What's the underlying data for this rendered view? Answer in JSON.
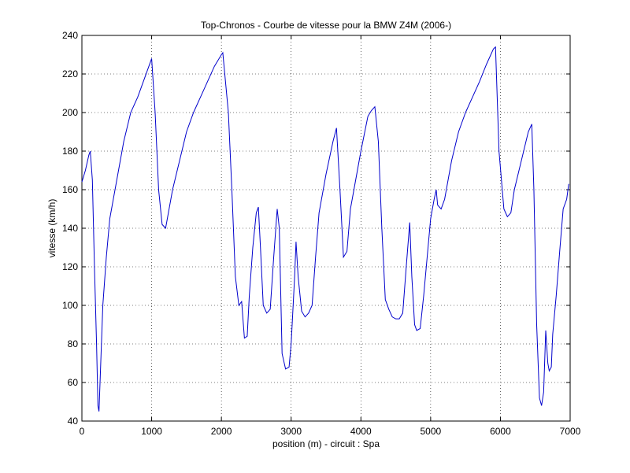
{
  "chart_data": {
    "type": "line",
    "title": "Top-Chronos - Courbe de vitesse pour la BMW Z4M (2006-)",
    "x_label": "position (m) - circuit : Spa",
    "y_label": "vitesse (km/h)",
    "xlim": [
      0,
      7000
    ],
    "ylim": [
      40,
      240
    ],
    "xticks": [
      0,
      1000,
      2000,
      3000,
      4000,
      5000,
      6000,
      7000
    ],
    "yticks": [
      40,
      60,
      80,
      100,
      120,
      140,
      160,
      180,
      200,
      220,
      240
    ],
    "grid": true,
    "x": [
      0,
      50,
      100,
      120,
      150,
      180,
      210,
      230,
      245,
      260,
      300,
      350,
      400,
      500,
      600,
      700,
      800,
      900,
      1000,
      1050,
      1100,
      1150,
      1200,
      1250,
      1300,
      1400,
      1500,
      1600,
      1700,
      1800,
      1900,
      2000,
      2020,
      2100,
      2150,
      2200,
      2250,
      2290,
      2330,
      2370,
      2400,
      2450,
      2500,
      2530,
      2560,
      2600,
      2650,
      2700,
      2750,
      2800,
      2830,
      2870,
      2920,
      2970,
      3000,
      3050,
      3070,
      3100,
      3150,
      3200,
      3250,
      3300,
      3350,
      3400,
      3500,
      3600,
      3650,
      3700,
      3750,
      3800,
      3850,
      3900,
      4000,
      4100,
      4150,
      4200,
      4250,
      4300,
      4350,
      4400,
      4450,
      4500,
      4550,
      4600,
      4650,
      4700,
      4730,
      4770,
      4800,
      4850,
      4900,
      4950,
      5000,
      5050,
      5080,
      5100,
      5150,
      5200,
      5300,
      5400,
      5500,
      5600,
      5700,
      5800,
      5900,
      5930,
      5980,
      6050,
      6100,
      6150,
      6200,
      6300,
      6400,
      6450,
      6480,
      6520,
      6560,
      6590,
      6620,
      6650,
      6680,
      6700,
      6730,
      6750,
      6800,
      6850,
      6900,
      6950,
      6980
    ],
    "series": [
      {
        "name": "vitesse",
        "color": "#0000cc",
        "values": [
          164,
          170,
          178,
          180,
          165,
          120,
          80,
          48,
          45,
          60,
          100,
          125,
          145,
          165,
          185,
          200,
          208,
          218,
          228,
          200,
          160,
          142,
          140,
          150,
          160,
          175,
          190,
          200,
          208,
          216,
          224,
          230,
          231,
          200,
          160,
          115,
          100,
          102,
          83,
          84,
          105,
          130,
          148,
          151,
          130,
          100,
          96,
          98,
          125,
          150,
          140,
          75,
          67,
          68,
          80,
          115,
          133,
          115,
          97,
          94,
          96,
          100,
          125,
          148,
          168,
          185,
          192,
          160,
          125,
          128,
          150,
          160,
          180,
          198,
          201,
          203,
          185,
          140,
          103,
          98,
          94,
          93,
          93,
          96,
          120,
          143,
          115,
          90,
          87,
          88,
          105,
          125,
          145,
          155,
          160,
          152,
          150,
          155,
          175,
          190,
          200,
          208,
          216,
          225,
          233,
          234,
          180,
          150,
          146,
          148,
          160,
          175,
          190,
          194,
          160,
          90,
          52,
          48,
          55,
          87,
          70,
          66,
          68,
          85,
          105,
          128,
          150,
          155,
          163
        ]
      }
    ]
  }
}
